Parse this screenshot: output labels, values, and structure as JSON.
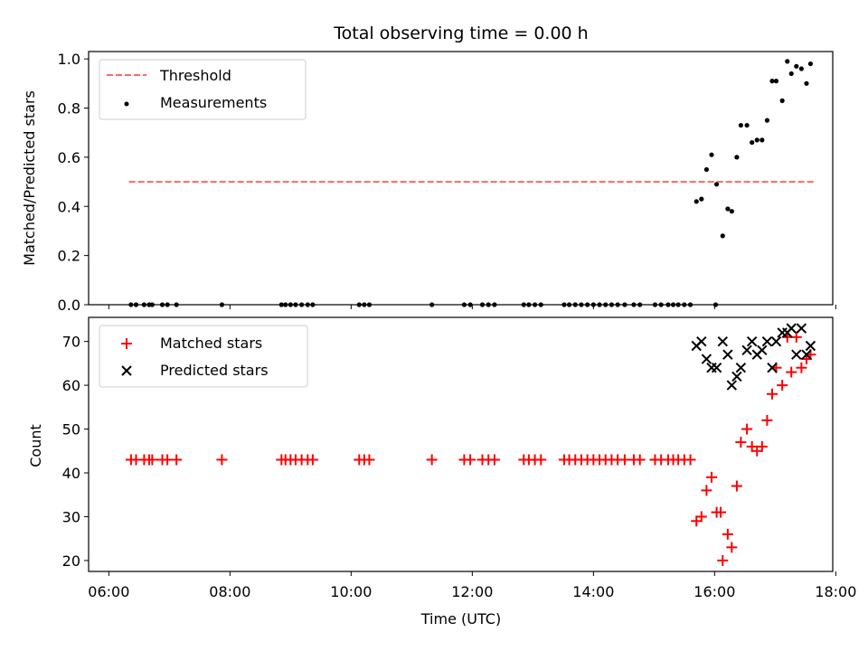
{
  "title": "Total observing time = 0.00 h",
  "colors": {
    "threshold": "#ff6666",
    "measurement": "#000000",
    "matched": "#ff0000",
    "predicted": "#000000"
  },
  "chart_data": [
    {
      "type": "scatter",
      "ylabel": "Matched/Predicted stars",
      "xlim": [
        "05:40",
        "17:57"
      ],
      "ylim": [
        0,
        1.03
      ],
      "yticks": [
        "0.0",
        "0.2",
        "0.4",
        "0.6",
        "0.8",
        "1.0"
      ],
      "legend_position": "top-left",
      "series": [
        {
          "name": "Threshold",
          "style": "dashed-line",
          "x": [
            "06:20",
            "17:40"
          ],
          "y": [
            0.5,
            0.5
          ]
        },
        {
          "name": "Measurements",
          "style": "dot",
          "points": [
            [
              "06:22",
              0.0
            ],
            [
              "06:27",
              0.0
            ],
            [
              "06:35",
              0.0
            ],
            [
              "06:40",
              0.0
            ],
            [
              "06:43",
              0.0
            ],
            [
              "06:53",
              0.0
            ],
            [
              "06:58",
              0.0
            ],
            [
              "07:07",
              0.0
            ],
            [
              "07:52",
              0.0
            ],
            [
              "08:51",
              0.0
            ],
            [
              "08:55",
              0.0
            ],
            [
              "09:00",
              0.0
            ],
            [
              "09:05",
              0.0
            ],
            [
              "09:11",
              0.0
            ],
            [
              "09:17",
              0.0
            ],
            [
              "09:22",
              0.0
            ],
            [
              "10:08",
              0.0
            ],
            [
              "10:13",
              0.0
            ],
            [
              "10:18",
              0.0
            ],
            [
              "11:20",
              0.0
            ],
            [
              "11:52",
              0.0
            ],
            [
              "11:58",
              0.0
            ],
            [
              "12:10",
              0.0
            ],
            [
              "12:16",
              0.0
            ],
            [
              "12:22",
              0.0
            ],
            [
              "12:51",
              0.0
            ],
            [
              "12:56",
              0.0
            ],
            [
              "13:02",
              0.0
            ],
            [
              "13:08",
              0.0
            ],
            [
              "13:31",
              0.0
            ],
            [
              "13:36",
              0.0
            ],
            [
              "13:42",
              0.0
            ],
            [
              "13:48",
              0.0
            ],
            [
              "13:54",
              0.0
            ],
            [
              "14:00",
              0.0
            ],
            [
              "14:06",
              0.0
            ],
            [
              "14:12",
              0.0
            ],
            [
              "14:18",
              0.0
            ],
            [
              "14:24",
              0.0
            ],
            [
              "14:31",
              0.0
            ],
            [
              "14:40",
              0.0
            ],
            [
              "14:46",
              0.0
            ],
            [
              "15:01",
              0.0
            ],
            [
              "15:07",
              0.0
            ],
            [
              "15:14",
              0.0
            ],
            [
              "15:19",
              0.0
            ],
            [
              "15:24",
              0.0
            ],
            [
              "15:30",
              0.0
            ],
            [
              "15:36",
              0.0
            ],
            [
              "16:01",
              0.0
            ],
            [
              "15:42",
              0.42
            ],
            [
              "15:47",
              0.43
            ],
            [
              "15:52",
              0.55
            ],
            [
              "15:57",
              0.61
            ],
            [
              "16:02",
              0.49
            ],
            [
              "16:08",
              0.28
            ],
            [
              "16:13",
              0.39
            ],
            [
              "16:17",
              0.38
            ],
            [
              "16:22",
              0.6
            ],
            [
              "16:26",
              0.73
            ],
            [
              "16:32",
              0.73
            ],
            [
              "16:37",
              0.66
            ],
            [
              "16:42",
              0.67
            ],
            [
              "16:47",
              0.67
            ],
            [
              "16:52",
              0.75
            ],
            [
              "16:57",
              0.91
            ],
            [
              "17:01",
              0.91
            ],
            [
              "17:07",
              0.83
            ],
            [
              "17:12",
              0.99
            ],
            [
              "17:16",
              0.94
            ],
            [
              "17:21",
              0.97
            ],
            [
              "17:26",
              0.96
            ],
            [
              "17:31",
              0.9
            ],
            [
              "17:35",
              0.98
            ]
          ]
        }
      ]
    },
    {
      "type": "scatter",
      "xlabel": "Time (UTC)",
      "ylabel": "Count",
      "xlim": [
        "05:40",
        "17:57"
      ],
      "ylim": [
        17.5,
        75.5
      ],
      "yticks": [
        "20",
        "30",
        "40",
        "50",
        "60",
        "70"
      ],
      "xticks": [
        "06:00",
        "08:00",
        "10:00",
        "12:00",
        "14:00",
        "16:00",
        "18:00"
      ],
      "legend_position": "top-left",
      "series": [
        {
          "name": "Matched stars",
          "marker": "plus",
          "points": [
            [
              "06:22",
              43
            ],
            [
              "06:27",
              43
            ],
            [
              "06:35",
              43
            ],
            [
              "06:40",
              43
            ],
            [
              "06:43",
              43
            ],
            [
              "06:53",
              43
            ],
            [
              "06:58",
              43
            ],
            [
              "07:07",
              43
            ],
            [
              "07:52",
              43
            ],
            [
              "08:51",
              43
            ],
            [
              "08:55",
              43
            ],
            [
              "09:00",
              43
            ],
            [
              "09:05",
              43
            ],
            [
              "09:11",
              43
            ],
            [
              "09:17",
              43
            ],
            [
              "09:22",
              43
            ],
            [
              "10:08",
              43
            ],
            [
              "10:13",
              43
            ],
            [
              "10:18",
              43
            ],
            [
              "11:20",
              43
            ],
            [
              "11:52",
              43
            ],
            [
              "11:58",
              43
            ],
            [
              "12:10",
              43
            ],
            [
              "12:16",
              43
            ],
            [
              "12:22",
              43
            ],
            [
              "12:51",
              43
            ],
            [
              "12:56",
              43
            ],
            [
              "13:02",
              43
            ],
            [
              "13:08",
              43
            ],
            [
              "13:31",
              43
            ],
            [
              "13:36",
              43
            ],
            [
              "13:42",
              43
            ],
            [
              "13:48",
              43
            ],
            [
              "13:54",
              43
            ],
            [
              "14:00",
              43
            ],
            [
              "14:06",
              43
            ],
            [
              "14:12",
              43
            ],
            [
              "14:18",
              43
            ],
            [
              "14:24",
              43
            ],
            [
              "14:31",
              43
            ],
            [
              "14:40",
              43
            ],
            [
              "14:46",
              43
            ],
            [
              "15:01",
              43
            ],
            [
              "15:07",
              43
            ],
            [
              "15:14",
              43
            ],
            [
              "15:19",
              43
            ],
            [
              "15:24",
              43
            ],
            [
              "15:30",
              43
            ],
            [
              "15:36",
              43
            ],
            [
              "15:42",
              29
            ],
            [
              "15:47",
              30
            ],
            [
              "15:52",
              36
            ],
            [
              "15:57",
              39
            ],
            [
              "16:02",
              31
            ],
            [
              "16:06",
              31
            ],
            [
              "16:08",
              20
            ],
            [
              "16:13",
              26
            ],
            [
              "16:17",
              23
            ],
            [
              "16:22",
              37
            ],
            [
              "16:26",
              47
            ],
            [
              "16:32",
              50
            ],
            [
              "16:37",
              46
            ],
            [
              "16:42",
              45
            ],
            [
              "16:47",
              46
            ],
            [
              "16:52",
              52
            ],
            [
              "16:57",
              58
            ],
            [
              "17:01",
              64
            ],
            [
              "17:07",
              60
            ],
            [
              "17:12",
              71
            ],
            [
              "17:16",
              63
            ],
            [
              "17:21",
              71
            ],
            [
              "17:26",
              64
            ],
            [
              "17:31",
              66
            ],
            [
              "17:35",
              67
            ]
          ]
        },
        {
          "name": "Predicted stars",
          "marker": "x",
          "points": [
            [
              "15:42",
              69
            ],
            [
              "15:47",
              70
            ],
            [
              "15:52",
              66
            ],
            [
              "15:57",
              64
            ],
            [
              "16:02",
              64
            ],
            [
              "16:08",
              70
            ],
            [
              "16:13",
              67
            ],
            [
              "16:17",
              60
            ],
            [
              "16:22",
              62
            ],
            [
              "16:26",
              64
            ],
            [
              "16:32",
              68
            ],
            [
              "16:37",
              70
            ],
            [
              "16:42",
              67
            ],
            [
              "16:47",
              68
            ],
            [
              "16:52",
              70
            ],
            [
              "16:57",
              64
            ],
            [
              "17:01",
              70
            ],
            [
              "17:07",
              72
            ],
            [
              "17:12",
              72
            ],
            [
              "17:16",
              73
            ],
            [
              "17:21",
              67
            ],
            [
              "17:26",
              73
            ],
            [
              "17:31",
              67
            ],
            [
              "17:35",
              69
            ]
          ]
        }
      ]
    }
  ]
}
